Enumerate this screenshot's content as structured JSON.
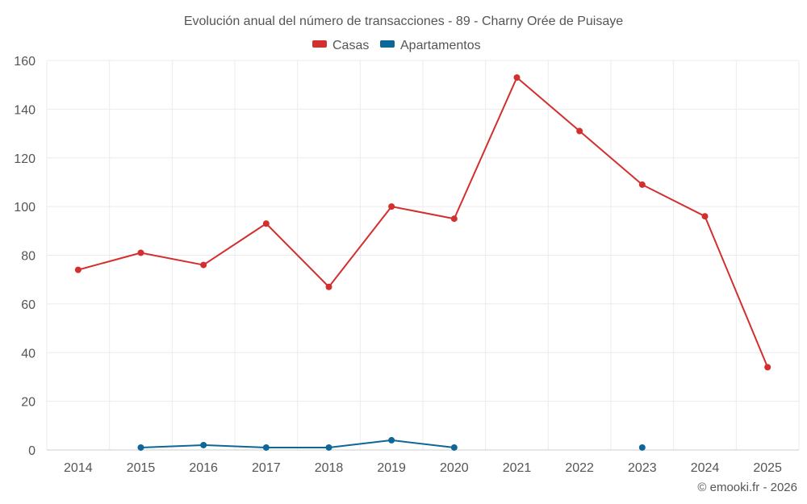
{
  "chart_data": {
    "type": "line",
    "title": "Evolución anual del número de transacciones - 89 - Charny Orée de Puisaye",
    "categories": [
      "2014",
      "2015",
      "2016",
      "2017",
      "2018",
      "2019",
      "2020",
      "2021",
      "2022",
      "2023",
      "2024",
      "2025"
    ],
    "ylim": [
      0,
      160
    ],
    "yticks": [
      0,
      20,
      40,
      60,
      80,
      100,
      120,
      140,
      160
    ],
    "legend_position": "top-center",
    "grid": true,
    "series": [
      {
        "name": "Casas",
        "color": "#d32f2f",
        "values": [
          74,
          81,
          76,
          93,
          67,
          100,
          95,
          153,
          131,
          109,
          96,
          34
        ]
      },
      {
        "name": "Apartamentos",
        "color": "#0d6798",
        "values": [
          null,
          1,
          2,
          1,
          1,
          4,
          1,
          null,
          null,
          1,
          null,
          null
        ]
      }
    ],
    "credit": "© emooki.fr - 2026"
  }
}
